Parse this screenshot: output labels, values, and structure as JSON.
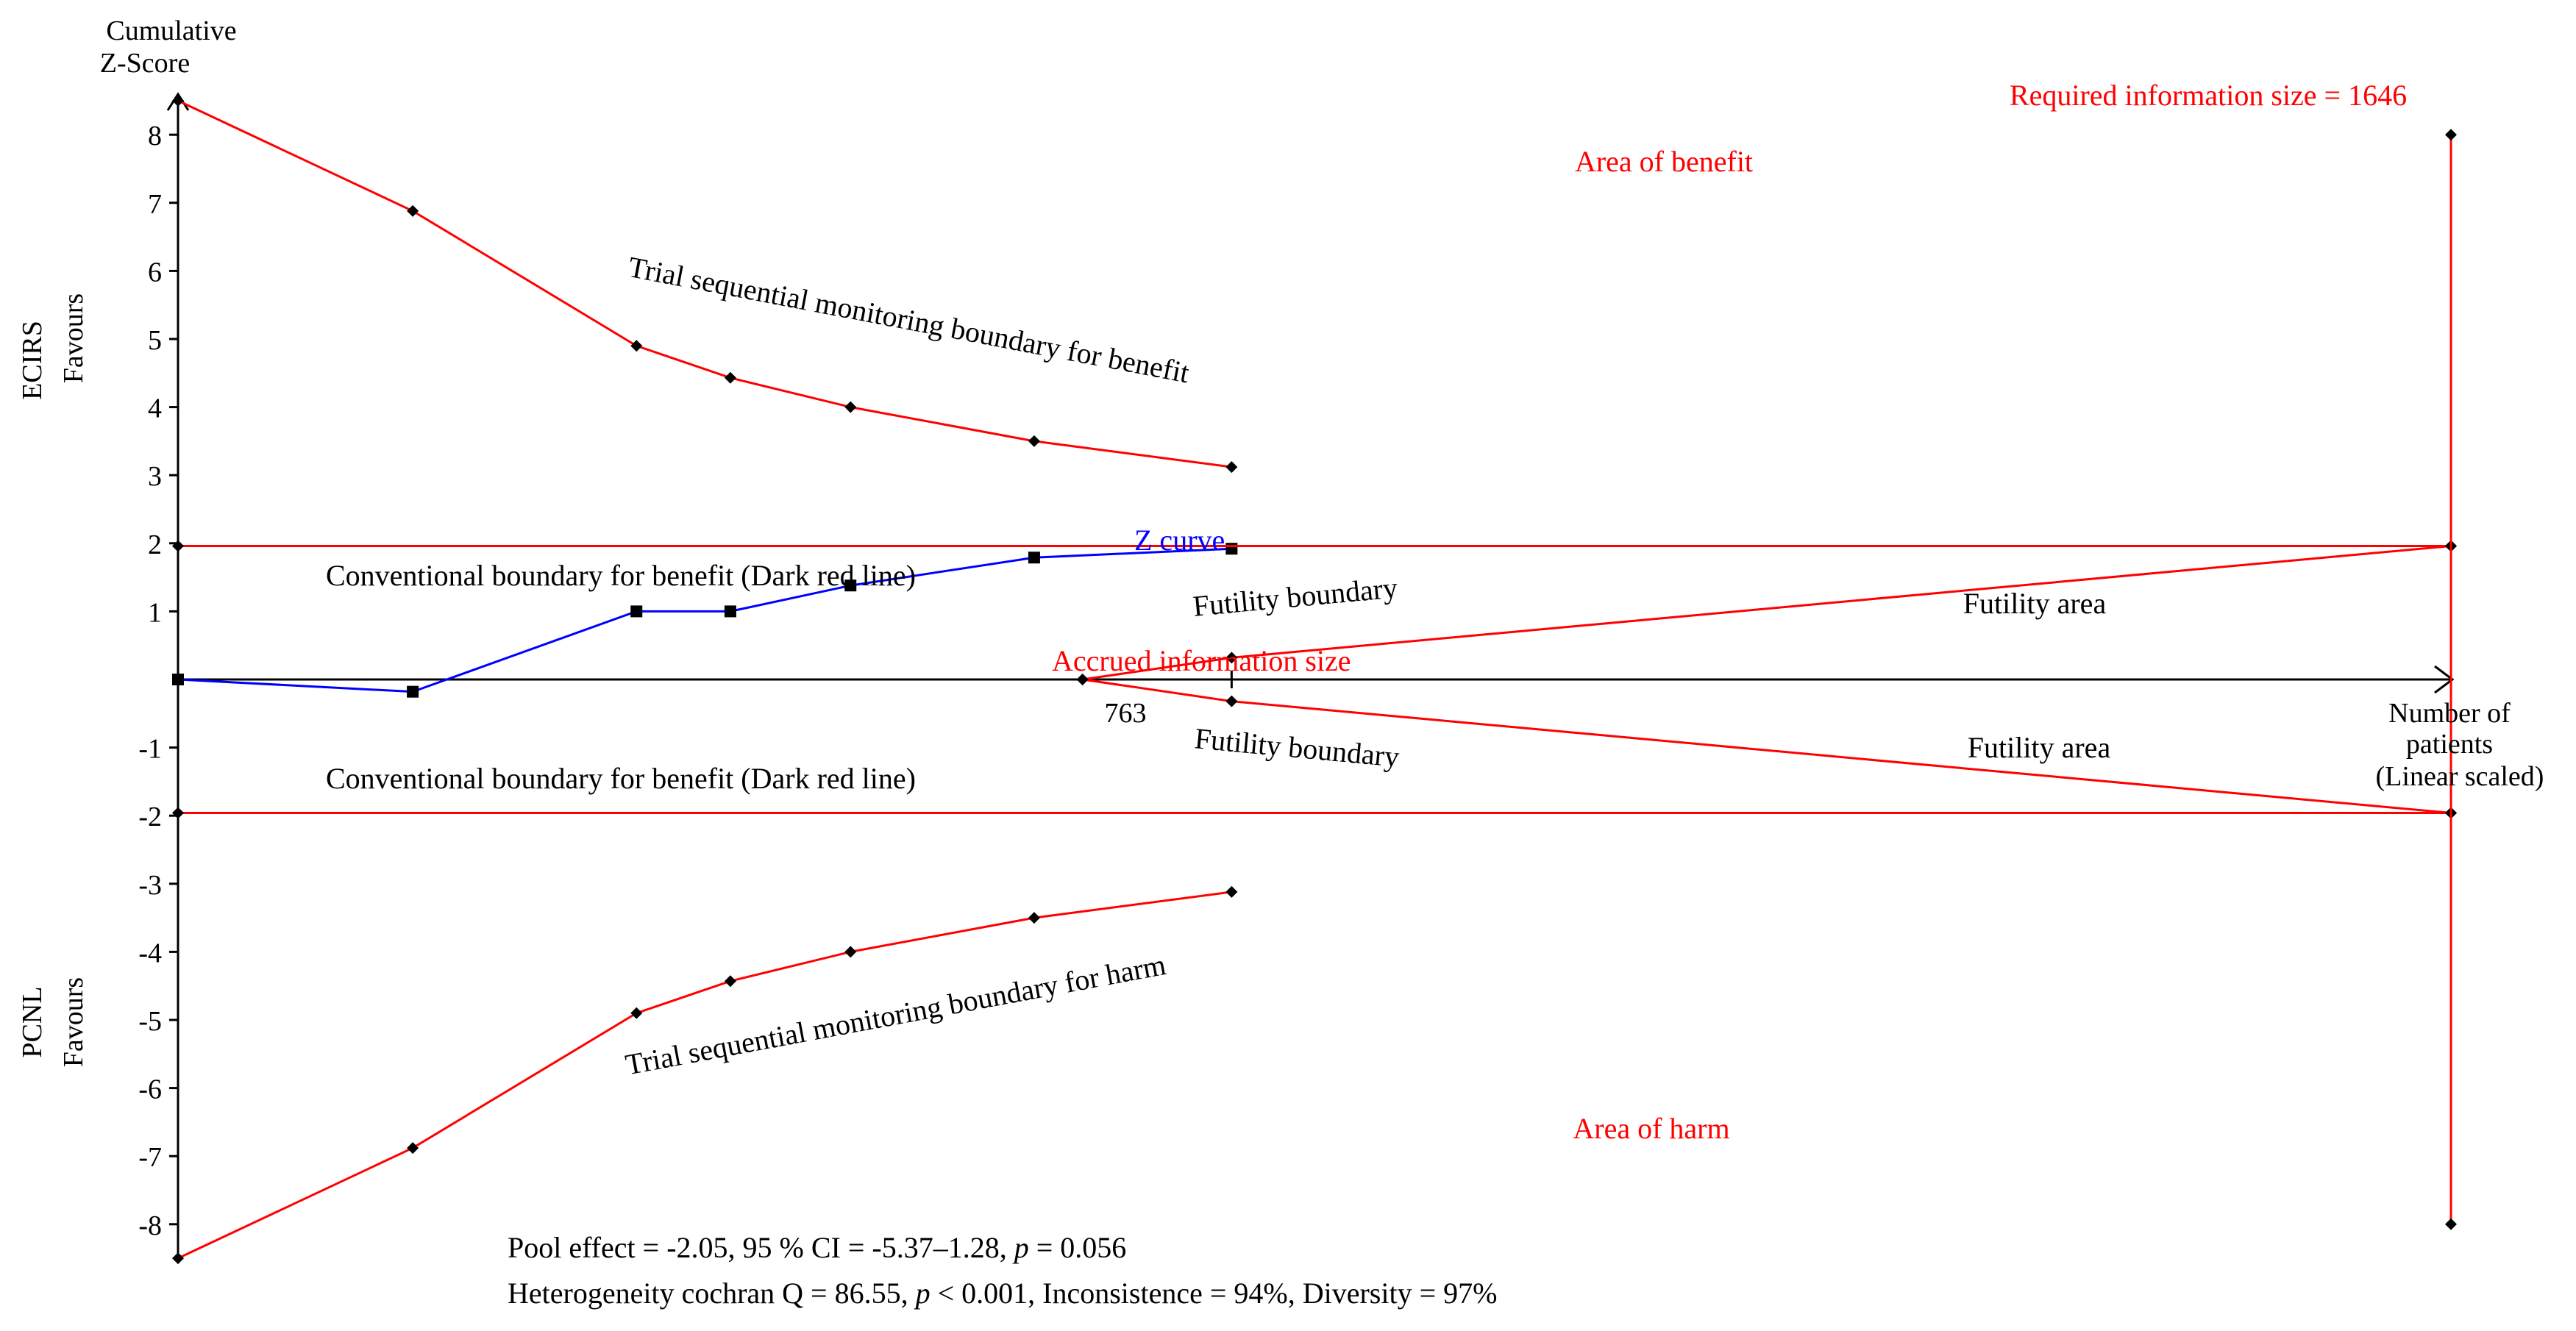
{
  "colors": {
    "boundary": "#ff0000",
    "zcurve": "#0000ff",
    "axis": "#000000",
    "text": "#000000",
    "label_red": "#ff0000"
  },
  "y_axis": {
    "title_line1": "Cumulative",
    "title_line2": "Z-Score",
    "favours_top_name": "ECIRS",
    "favours_top_word": "Favours",
    "favours_bottom_name": "PCNL",
    "favours_bottom_word": "Favours"
  },
  "x_axis": {
    "title_line1": "Number of",
    "title_line2": "patients",
    "title_line3": "(Linear scaled)"
  },
  "labels": {
    "required_info_size": "Required information size = 1646",
    "area_of_benefit": "Area of benefit",
    "area_of_harm": "Area of harm",
    "tsm_benefit": "Trial sequential monitoring boundary for benefit",
    "tsm_harm": "Trial sequential monitoring boundary for harm",
    "conv_benefit_upper": "Conventional boundary for benefit (Dark red line)",
    "conv_benefit_lower": "Conventional boundary for benefit (Dark red line)",
    "z_curve": "Z curve",
    "futility_boundary_upper": "Futility boundary",
    "futility_boundary_lower": "Futility boundary",
    "futility_area_upper": "Futility area",
    "futility_area_lower": "Futility area",
    "accrued_info_size": "Accrued information size",
    "accrued_value": "763"
  },
  "footer": {
    "line1_a": "Pool effect = -2.05, 95 % CI = -5.37–1.28, ",
    "line1_p": "p",
    "line1_b": " = 0.056",
    "line2_a": "Heterogeneity cochran Q = 86.55, ",
    "line2_p": "p",
    "line2_b": " < 0.001, Inconsistence = 94%, Diversity = 97%"
  },
  "chart_data": {
    "type": "line",
    "title": "",
    "xlabel": "Number of patients (Linear scaled)",
    "ylabel": "Cumulative Z-Score",
    "xlim": [
      0,
      1900
    ],
    "ylim": [
      -8.5,
      8.5
    ],
    "y_ticks": [
      {
        "value": 8,
        "label": "8"
      },
      {
        "value": 7,
        "label": "7"
      },
      {
        "value": 6,
        "label": "6"
      },
      {
        "value": 5,
        "label": "5"
      },
      {
        "value": 4,
        "label": "4"
      },
      {
        "value": 3,
        "label": "3"
      },
      {
        "value": 2,
        "label": "2"
      },
      {
        "value": 1,
        "label": "1"
      },
      {
        "value": -1,
        "label": "-1"
      },
      {
        "value": -2,
        "label": "-2"
      },
      {
        "value": -3,
        "label": "-3"
      },
      {
        "value": -4,
        "label": "-4"
      },
      {
        "value": -5,
        "label": "-5"
      },
      {
        "value": -6,
        "label": "-6"
      },
      {
        "value": -7,
        "label": "-7"
      },
      {
        "value": -8,
        "label": "-8"
      }
    ],
    "required_information_size": 1646,
    "accrued_information_size": 763,
    "series": [
      {
        "name": "Trial sequential monitoring boundary for benefit",
        "color": "#ff0000",
        "marker": "diamond",
        "x": [
          0,
          170,
          332,
          400,
          487,
          620,
          763
        ],
        "y": [
          8.5,
          6.88,
          4.9,
          4.43,
          4.0,
          3.5,
          3.12
        ]
      },
      {
        "name": "Trial sequential monitoring boundary for harm",
        "color": "#ff0000",
        "marker": "diamond",
        "x": [
          0,
          170,
          332,
          400,
          487,
          620,
          763
        ],
        "y": [
          -8.5,
          -6.88,
          -4.9,
          -4.43,
          -4.0,
          -3.5,
          -3.12
        ]
      },
      {
        "name": "Z curve",
        "color": "#0000ff",
        "marker": "square",
        "x": [
          0,
          170,
          332,
          400,
          487,
          620,
          763
        ],
        "y": [
          0,
          -0.18,
          1.0,
          1.0,
          1.38,
          1.79,
          1.92
        ]
      },
      {
        "name": "Conventional boundary for benefit (upper)",
        "color": "#ff0000",
        "marker": "diamond",
        "x": [
          0,
          1646
        ],
        "y": [
          1.96,
          1.96
        ]
      },
      {
        "name": "Conventional boundary for benefit (lower)",
        "color": "#ff0000",
        "marker": "diamond",
        "x": [
          0,
          1646
        ],
        "y": [
          -1.96,
          -1.96
        ]
      },
      {
        "name": "Futility boundary (upper)",
        "color": "#ff0000",
        "marker": "diamond",
        "x": [
          655,
          763,
          1646
        ],
        "y": [
          0,
          0.32,
          1.96
        ]
      },
      {
        "name": "Futility boundary (lower)",
        "color": "#ff0000",
        "marker": "diamond",
        "x": [
          655,
          763,
          1646
        ],
        "y": [
          0,
          -0.32,
          -1.96
        ]
      },
      {
        "name": "Required information size line",
        "color": "#ff0000",
        "marker": "diamond",
        "x": [
          1646,
          1646
        ],
        "y": [
          8.0,
          -8.0
        ]
      }
    ]
  }
}
